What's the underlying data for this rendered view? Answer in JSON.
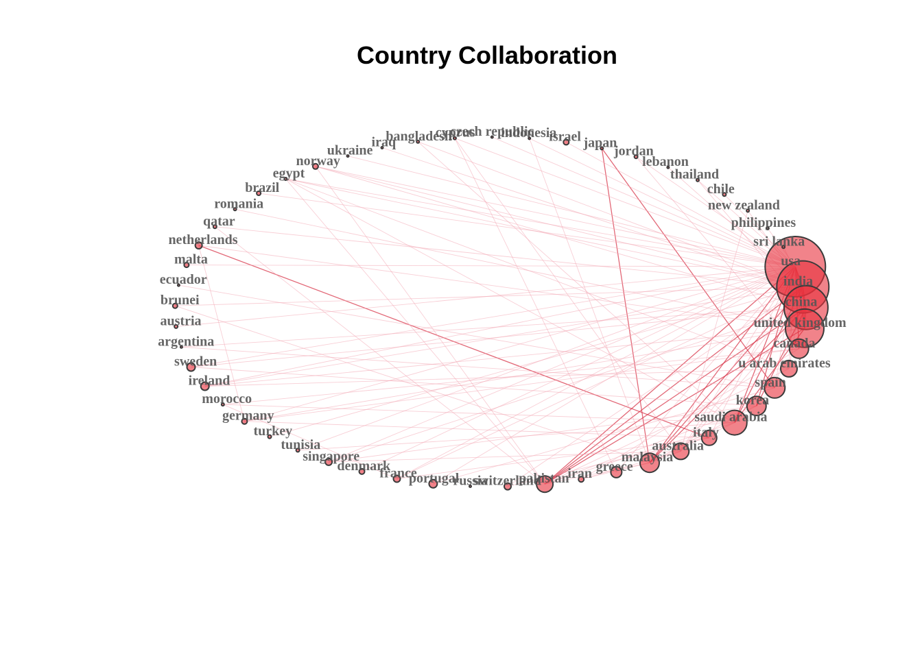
{
  "title": "Country Collaboration",
  "colors": {
    "node_fill": "#e8303c",
    "node_stroke": "#3a3a3a",
    "edge_strong": "#d8354a",
    "edge_weak": "#f2a6b2",
    "label": "#555555"
  },
  "network": {
    "layout": "circle",
    "nodes": [
      {
        "id": "usa",
        "label": "usa",
        "size": 44
      },
      {
        "id": "india",
        "label": "india",
        "size": 38
      },
      {
        "id": "china",
        "label": "china",
        "size": 32
      },
      {
        "id": "united_kingdom",
        "label": "united kingdom",
        "size": 28
      },
      {
        "id": "canada",
        "label": "canada",
        "size": 14
      },
      {
        "id": "uae",
        "label": "u arab emirates",
        "size": 12
      },
      {
        "id": "spain",
        "label": "spain",
        "size": 15
      },
      {
        "id": "korea",
        "label": "korea",
        "size": 14
      },
      {
        "id": "saudi_arabia",
        "label": "saudi arabia",
        "size": 18
      },
      {
        "id": "italy",
        "label": "italy",
        "size": 11
      },
      {
        "id": "australia",
        "label": "australia",
        "size": 12
      },
      {
        "id": "malaysia",
        "label": "malaysia",
        "size": 14
      },
      {
        "id": "greece",
        "label": "greece",
        "size": 8
      },
      {
        "id": "iran",
        "label": "iran",
        "size": 4
      },
      {
        "id": "pakistan",
        "label": "pakistan",
        "size": 12
      },
      {
        "id": "switzerland",
        "label": "switzerland",
        "size": 5
      },
      {
        "id": "russia",
        "label": "russia",
        "size": 1.5
      },
      {
        "id": "portugal",
        "label": "portugal",
        "size": 6
      },
      {
        "id": "france",
        "label": "france",
        "size": 5
      },
      {
        "id": "denmark",
        "label": "denmark",
        "size": 4
      },
      {
        "id": "singapore",
        "label": "singapore",
        "size": 5
      },
      {
        "id": "tunisia",
        "label": "tunisia",
        "size": 2.5
      },
      {
        "id": "turkey",
        "label": "turkey",
        "size": 2.5
      },
      {
        "id": "germany",
        "label": "germany",
        "size": 4
      },
      {
        "id": "morocco",
        "label": "morocco",
        "size": 2
      },
      {
        "id": "ireland",
        "label": "ireland",
        "size": 6
      },
      {
        "id": "sweden",
        "label": "sweden",
        "size": 6
      },
      {
        "id": "argentina",
        "label": "argentina",
        "size": 1.5
      },
      {
        "id": "austria",
        "label": "austria",
        "size": 2.5
      },
      {
        "id": "brunei",
        "label": "brunei",
        "size": 3.5
      },
      {
        "id": "ecuador",
        "label": "ecuador",
        "size": 1.5
      },
      {
        "id": "malta",
        "label": "malta",
        "size": 3.5
      },
      {
        "id": "netherlands",
        "label": "netherlands",
        "size": 5
      },
      {
        "id": "qatar",
        "label": "qatar",
        "size": 2.5
      },
      {
        "id": "romania",
        "label": "romania",
        "size": 2
      },
      {
        "id": "brazil",
        "label": "brazil",
        "size": 3
      },
      {
        "id": "egypt",
        "label": "egypt",
        "size": 2
      },
      {
        "id": "norway",
        "label": "norway",
        "size": 4
      },
      {
        "id": "ukraine",
        "label": "ukraine",
        "size": 1.5
      },
      {
        "id": "iraq",
        "label": "iraq",
        "size": 1.5
      },
      {
        "id": "bangladesh",
        "label": "bangladesh",
        "size": 2
      },
      {
        "id": "cyprus",
        "label": "cyprus",
        "size": 2
      },
      {
        "id": "czech_republic",
        "label": "czech republic",
        "size": 1.5
      },
      {
        "id": "indonesia",
        "label": "indonesia",
        "size": 1.5
      },
      {
        "id": "israel",
        "label": "israel",
        "size": 4
      },
      {
        "id": "japan",
        "label": "japan",
        "size": 2
      },
      {
        "id": "jordan",
        "label": "jordan",
        "size": 2.5
      },
      {
        "id": "lebanon",
        "label": "lebanon",
        "size": 1.5
      },
      {
        "id": "thailand",
        "label": "thailand",
        "size": 2
      },
      {
        "id": "chile",
        "label": "chile",
        "size": 2.5
      },
      {
        "id": "new_zealand",
        "label": "new zealand",
        "size": 2
      },
      {
        "id": "philippines",
        "label": "philippines",
        "size": 2
      },
      {
        "id": "sri_lanka",
        "label": "sri lanka",
        "size": 2
      }
    ],
    "edges": [
      [
        "usa",
        "india"
      ],
      [
        "usa",
        "china"
      ],
      [
        "usa",
        "united_kingdom"
      ],
      [
        "india",
        "china"
      ],
      [
        "india",
        "united_kingdom"
      ],
      [
        "china",
        "united_kingdom"
      ],
      [
        "usa",
        "canada"
      ],
      [
        "usa",
        "saudi_arabia"
      ],
      [
        "india",
        "saudi_arabia"
      ],
      [
        "china",
        "korea"
      ],
      [
        "usa",
        "korea"
      ],
      [
        "india",
        "malaysia"
      ],
      [
        "usa",
        "malaysia"
      ],
      [
        "china",
        "malaysia"
      ],
      [
        "china",
        "pakistan"
      ],
      [
        "usa",
        "pakistan"
      ],
      [
        "india",
        "pakistan"
      ],
      [
        "united_kingdom",
        "pakistan"
      ],
      [
        "united_kingdom",
        "saudi_arabia"
      ],
      [
        "usa",
        "spain"
      ],
      [
        "india",
        "spain"
      ],
      [
        "usa",
        "australia"
      ],
      [
        "china",
        "australia"
      ],
      [
        "india",
        "australia"
      ],
      [
        "usa",
        "italy"
      ],
      [
        "italy",
        "netherlands"
      ],
      [
        "india",
        "uae"
      ],
      [
        "usa",
        "uae"
      ],
      [
        "malaysia",
        "japan"
      ],
      [
        "spain",
        "japan"
      ],
      [
        "usa",
        "greece"
      ],
      [
        "india",
        "switzerland"
      ],
      [
        "usa",
        "germany"
      ],
      [
        "usa",
        "ireland"
      ],
      [
        "india",
        "ireland"
      ],
      [
        "usa",
        "sweden"
      ],
      [
        "china",
        "sweden"
      ],
      [
        "usa",
        "singapore"
      ],
      [
        "china",
        "singapore"
      ],
      [
        "usa",
        "france"
      ],
      [
        "india",
        "france"
      ],
      [
        "usa",
        "denmark"
      ],
      [
        "usa",
        "portugal"
      ],
      [
        "india",
        "turkey"
      ],
      [
        "usa",
        "tunisia"
      ],
      [
        "china",
        "argentina"
      ],
      [
        "usa",
        "austria"
      ],
      [
        "india",
        "brunei"
      ],
      [
        "usa",
        "malta"
      ],
      [
        "usa",
        "norway"
      ],
      [
        "india",
        "norway"
      ],
      [
        "usa",
        "brazil"
      ],
      [
        "usa",
        "egypt"
      ],
      [
        "india",
        "egypt"
      ],
      [
        "usa",
        "israel"
      ],
      [
        "usa",
        "chile"
      ],
      [
        "india",
        "new_zealand"
      ],
      [
        "usa",
        "philippines"
      ],
      [
        "india",
        "sri_lanka"
      ],
      [
        "usa",
        "thailand"
      ],
      [
        "usa",
        "jordan"
      ],
      [
        "india",
        "lebanon"
      ],
      [
        "usa",
        "indonesia"
      ],
      [
        "india",
        "bangladesh"
      ],
      [
        "usa",
        "cyprus"
      ],
      [
        "saudi_arabia",
        "egypt"
      ],
      [
        "saudi_arabia",
        "pakistan"
      ],
      [
        "saudi_arabia",
        "malaysia"
      ],
      [
        "saudi_arabia",
        "tunisia"
      ],
      [
        "saudi_arabia",
        "morocco"
      ],
      [
        "korea",
        "pakistan"
      ],
      [
        "korea",
        "malaysia"
      ],
      [
        "korea",
        "singapore"
      ],
      [
        "spain",
        "portugal"
      ],
      [
        "spain",
        "argentina"
      ],
      [
        "spain",
        "ecuador"
      ],
      [
        "italy",
        "germany"
      ],
      [
        "italy",
        "france"
      ],
      [
        "italy",
        "switzerland"
      ],
      [
        "uae",
        "pakistan"
      ],
      [
        "uae",
        "ireland"
      ],
      [
        "uae",
        "egypt"
      ],
      [
        "australia",
        "malaysia"
      ],
      [
        "australia",
        "singapore"
      ],
      [
        "australia",
        "iran"
      ],
      [
        "malaysia",
        "pakistan"
      ],
      [
        "malaysia",
        "iran"
      ],
      [
        "malaysia",
        "brunei"
      ],
      [
        "pakistan",
        "norway"
      ],
      [
        "pakistan",
        "egypt"
      ],
      [
        "pakistan",
        "qatar"
      ],
      [
        "greece",
        "cyprus"
      ],
      [
        "france",
        "morocco"
      ],
      [
        "germany",
        "netherlands"
      ],
      [
        "canada",
        "iran"
      ],
      [
        "canada",
        "germany"
      ],
      [
        "china",
        "norway"
      ],
      [
        "united_kingdom",
        "ireland"
      ],
      [
        "united_kingdom",
        "germany"
      ],
      [
        "united_kingdom",
        "netherlands"
      ],
      [
        "united_kingdom",
        "romania"
      ],
      [
        "india",
        "qatar"
      ],
      [
        "usa",
        "ukraine"
      ],
      [
        "usa",
        "czech_republic"
      ],
      [
        "india",
        "iraq"
      ],
      [
        "korea",
        "sweden"
      ],
      [
        "saudi_arabia",
        "bangladesh"
      ],
      [
        "australia",
        "new_zealand"
      ],
      [
        "australia",
        "cyprus"
      ],
      [
        "malaysia",
        "indonesia"
      ],
      [
        "canada",
        "morocco"
      ],
      [
        "canada",
        "jordan"
      ],
      [
        "china",
        "thailand"
      ]
    ],
    "strong_edges": [
      [
        "usa",
        "india"
      ],
      [
        "usa",
        "china"
      ],
      [
        "usa",
        "united_kingdom"
      ],
      [
        "india",
        "china"
      ],
      [
        "india",
        "united_kingdom"
      ],
      [
        "china",
        "united_kingdom"
      ],
      [
        "usa",
        "canada"
      ],
      [
        "usa",
        "saudi_arabia"
      ],
      [
        "india",
        "saudi_arabia"
      ],
      [
        "china",
        "korea"
      ],
      [
        "usa",
        "korea"
      ],
      [
        "china",
        "pakistan"
      ],
      [
        "usa",
        "pakistan"
      ],
      [
        "usa",
        "malaysia"
      ],
      [
        "india",
        "malaysia"
      ],
      [
        "italy",
        "netherlands"
      ],
      [
        "malaysia",
        "japan"
      ],
      [
        "spain",
        "japan"
      ],
      [
        "united_kingdom",
        "saudi_arabia"
      ],
      [
        "china",
        "malaysia"
      ],
      [
        "united_kingdom",
        "pakistan"
      ],
      [
        "india",
        "pakistan"
      ]
    ]
  }
}
